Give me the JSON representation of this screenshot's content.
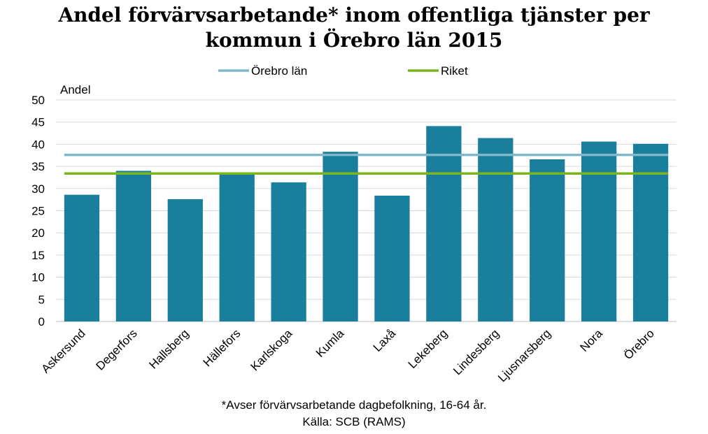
{
  "chart_data": {
    "type": "bar",
    "title": [
      "Andel förvärvsarbetande* inom offentliga tjänster per",
      "kommun i Örebro län 2015"
    ],
    "ylabel": "Andel",
    "xlabel": "",
    "ylim": [
      0,
      50
    ],
    "yticks": [
      0,
      5,
      10,
      15,
      20,
      25,
      30,
      35,
      40,
      45,
      50
    ],
    "grid": true,
    "legend_position": "top",
    "categories": [
      "Askersund",
      "Degerfors",
      "Hallsberg",
      "Hällefors",
      "Karlskoga",
      "Kumla",
      "Laxå",
      "Lekeberg",
      "Lindesberg",
      "Ljusnarsberg",
      "Nora",
      "Örebro"
    ],
    "series": [
      {
        "values": [
          28.6,
          34.0,
          27.6,
          33.4,
          31.4,
          38.3,
          28.4,
          44.1,
          41.4,
          36.6,
          40.6,
          40.1
        ],
        "color": "#1a7f9c"
      }
    ],
    "reference_lines": [
      {
        "name": "Örebro län",
        "value": 37.6,
        "color": "#7fb8c8"
      },
      {
        "name": "Riket",
        "value": 33.4,
        "color": "#7ab51d"
      }
    ],
    "footnote": "*Avser förvärvsarbetande dagbefolkning,  16-64 år.",
    "source": "Källa: SCB (RAMS)"
  }
}
